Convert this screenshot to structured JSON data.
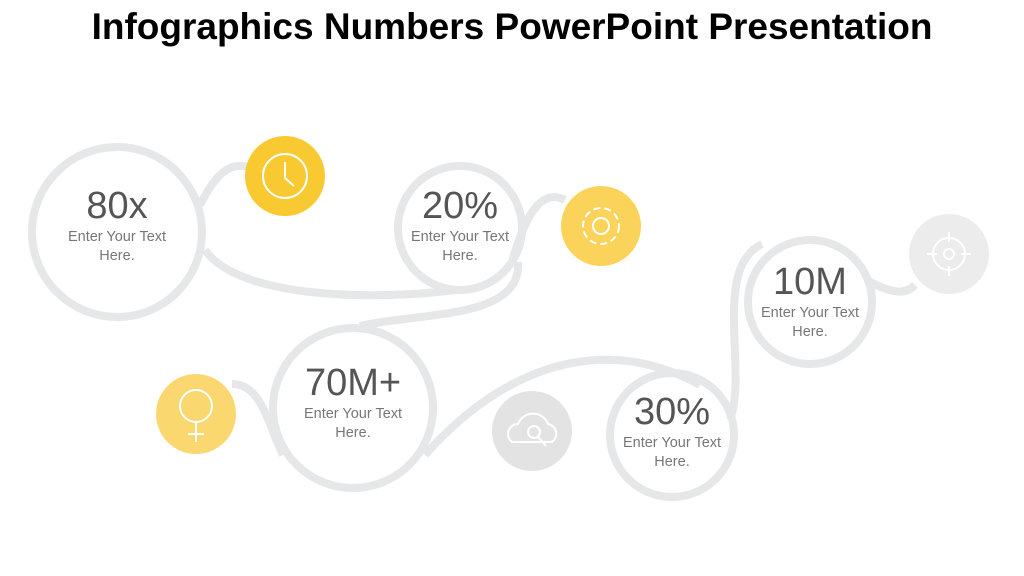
{
  "title": "Infographics Numbers PowerPoint Presentation",
  "items": [
    {
      "value": "80x",
      "text": "Enter Your Text Here."
    },
    {
      "value": "20%",
      "text": "Enter Your Text Here."
    },
    {
      "value": "70M+",
      "text": "Enter Your Text Here."
    },
    {
      "value": "30%",
      "text": "Enter Your Text Here."
    },
    {
      "value": "10M",
      "text": "Enter Your Text Here."
    }
  ]
}
